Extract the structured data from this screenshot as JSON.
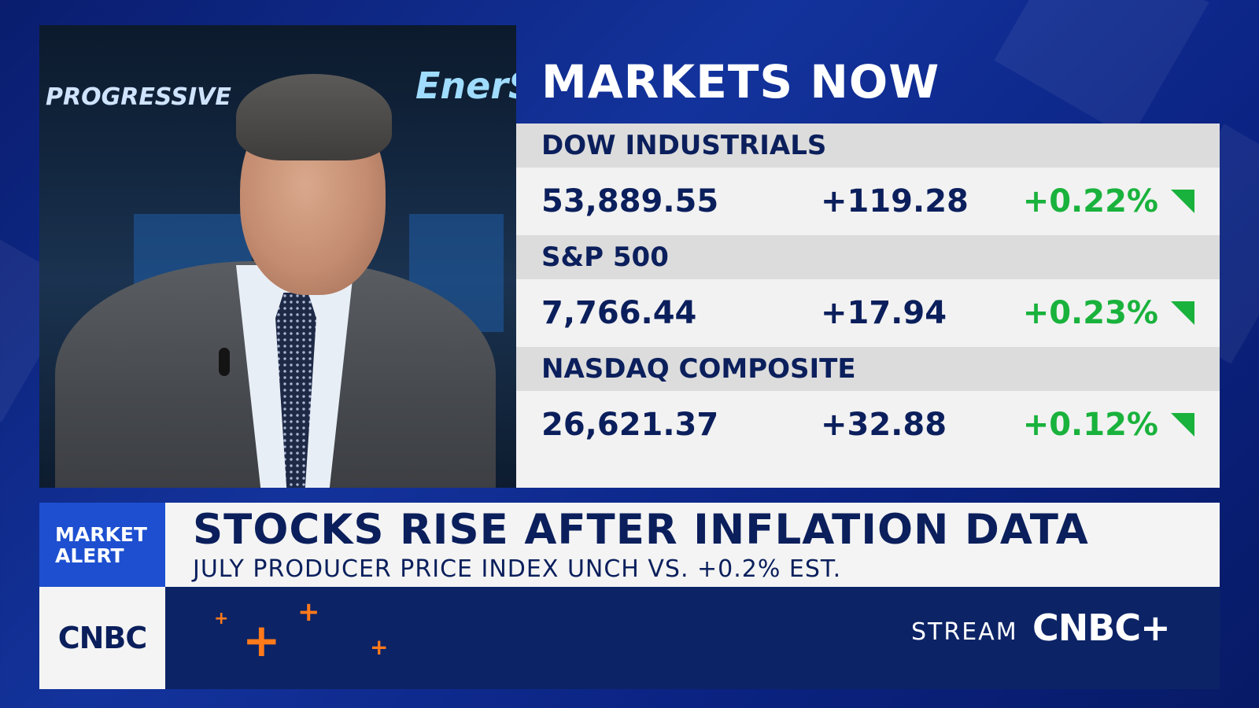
{
  "video": {
    "signs": [
      "PROGRESSIVE",
      "EnerSys"
    ]
  },
  "markets": {
    "title": "MARKETS NOW",
    "rows": [
      {
        "name": "DOW INDUSTRIALS",
        "value": "53,889.55",
        "change": "+119.28",
        "percent": "+0.22%"
      },
      {
        "name": "S&P 500",
        "value": "7,766.44",
        "change": "+17.94",
        "percent": "+0.23%"
      },
      {
        "name": "NASDAQ COMPOSITE",
        "value": "26,621.37",
        "change": "+32.88",
        "percent": "+0.12%"
      }
    ],
    "up_color": "#19b23c"
  },
  "lower_third": {
    "alert_line1": "MARKET",
    "alert_line2": "ALERT",
    "headline": "STOCKS RISE AFTER INFLATION DATA",
    "subhead": "JULY PRODUCER PRICE INDEX UNCH VS. +0.2% EST."
  },
  "bottom_bar": {
    "logo": "CNBC",
    "stream_label": "STREAM",
    "stream_logo": "CNBC+"
  }
}
